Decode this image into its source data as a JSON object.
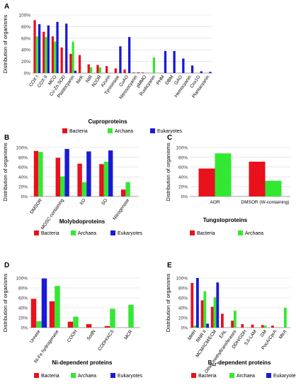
{
  "colors": {
    "Bacteria": "#e8111c",
    "Archaea": "#33e833",
    "Eukaryotes": "#1a1ad6"
  },
  "chart_data": [
    {
      "panel": "A",
      "type": "bar",
      "xlabel": "Cuproproteins",
      "ylabel": "Distribution of organisms",
      "ylim": [
        0,
        100
      ],
      "yticks": [
        "0%",
        "20%",
        "40%",
        "60%",
        "80%",
        "100%"
      ],
      "categories": [
        "COX I",
        "COX II",
        "MCO",
        "Cu-Zn SOD",
        "Plastocyanin",
        "NirK",
        "NIR",
        "N2OR",
        "Azurin",
        "Tyrosinase",
        "CuAO",
        "Nitrosocyanin",
        "pMMO",
        "Rusticyanin",
        "PHM",
        "DBM",
        "GAO",
        "Hemocyanin",
        "Cnx1G",
        "Plantacyanin"
      ],
      "series": [
        {
          "name": "Bacteria",
          "values": [
            91,
            71,
            63,
            44,
            33,
            31,
            15,
            14,
            12,
            8,
            6,
            1,
            1,
            0,
            0,
            0,
            0,
            0,
            0,
            0
          ]
        },
        {
          "name": "Archaea",
          "values": [
            63,
            62,
            54,
            0,
            54,
            0,
            10,
            10,
            0,
            0,
            0,
            0,
            0,
            27,
            0,
            0,
            0,
            0,
            0,
            0
          ]
        },
        {
          "name": "Eukaryotes",
          "values": [
            84,
            82,
            88,
            85,
            4,
            0,
            0,
            0,
            0,
            46,
            62,
            1,
            0,
            0,
            38,
            38,
            25,
            13,
            3,
            2
          ]
        }
      ]
    },
    {
      "panel": "B",
      "type": "bar",
      "xlabel": "Molybdoproteins",
      "ylabel": "Distribution of organisms",
      "ylim": [
        0,
        100
      ],
      "yticks": [
        "0%",
        "20%",
        "40%",
        "60%",
        "80%",
        "100%"
      ],
      "categories": [
        "DMSOR",
        "MOSC-containing",
        "XO",
        "SO",
        "Nitrogenase"
      ],
      "series": [
        {
          "name": "Bacteria",
          "values": [
            93,
            79,
            67,
            66,
            14
          ]
        },
        {
          "name": "Archaea",
          "values": [
            91,
            41,
            29,
            71,
            29
          ]
        },
        {
          "name": "Eukaryotes",
          "values": [
            0,
            97,
            92,
            94,
            0
          ]
        }
      ]
    },
    {
      "panel": "C",
      "type": "bar",
      "xlabel": "Tungstoproteins",
      "ylabel": "Distribution of organisms",
      "ylim": [
        0,
        100
      ],
      "yticks": [
        "0%",
        "20%",
        "40%",
        "60%",
        "80%",
        "100%"
      ],
      "categories": [
        "AOR",
        "DMSOR (W-containing)"
      ],
      "series": [
        {
          "name": "Bacteria",
          "values": [
            57,
            71
          ]
        },
        {
          "name": "Archaea",
          "values": [
            88,
            32
          ]
        }
      ]
    },
    {
      "panel": "D",
      "type": "bar",
      "xlabel": "Ni-dependent proteins",
      "ylabel": "Distribution of organisms",
      "ylim": [
        0,
        100
      ],
      "yticks": [
        "0%",
        "20%",
        "40%",
        "60%",
        "80%",
        "100%"
      ],
      "categories": [
        "Urease",
        "Ni-Fe hydrogenase",
        "COOH",
        "SodN",
        "CODH/ACS",
        "MCR"
      ],
      "series": [
        {
          "name": "Bacteria",
          "values": [
            58,
            53,
            12,
            7,
            3,
            0
          ]
        },
        {
          "name": "Archaea",
          "values": [
            13,
            84,
            22,
            0,
            38,
            46
          ]
        },
        {
          "name": "Eukaryotes",
          "values": [
            99,
            0,
            0,
            0,
            0,
            0
          ]
        }
      ]
    },
    {
      "panel": "E",
      "type": "bar",
      "xlabel": "B12-dependent proteins",
      "xlabel_sub": "12",
      "ylabel": "Distribution of organisms",
      "ylim": [
        0,
        100
      ],
      "yticks": [
        "0%",
        "20%",
        "40%",
        "60%",
        "80%",
        "100%"
      ],
      "categories": [
        "MetH",
        "RNR II",
        "MCM/ICM/ECM",
        "EAL",
        "Other methyltransferases",
        "DDH/GDH",
        "5,6-LAM",
        "GM",
        "PocA/CprA",
        "MtrA"
      ],
      "series": [
        {
          "name": "Bacteria",
          "values": [
            90,
            55,
            42,
            28,
            14,
            7,
            6,
            5,
            4,
            0
          ]
        },
        {
          "name": "Archaea",
          "values": [
            4,
            73,
            61,
            0,
            34,
            0,
            0,
            4,
            0,
            40
          ]
        },
        {
          "name": "Eukaryotes",
          "values": [
            100,
            8,
            91,
            0,
            0,
            0,
            0,
            0,
            0,
            0
          ]
        }
      ]
    }
  ]
}
